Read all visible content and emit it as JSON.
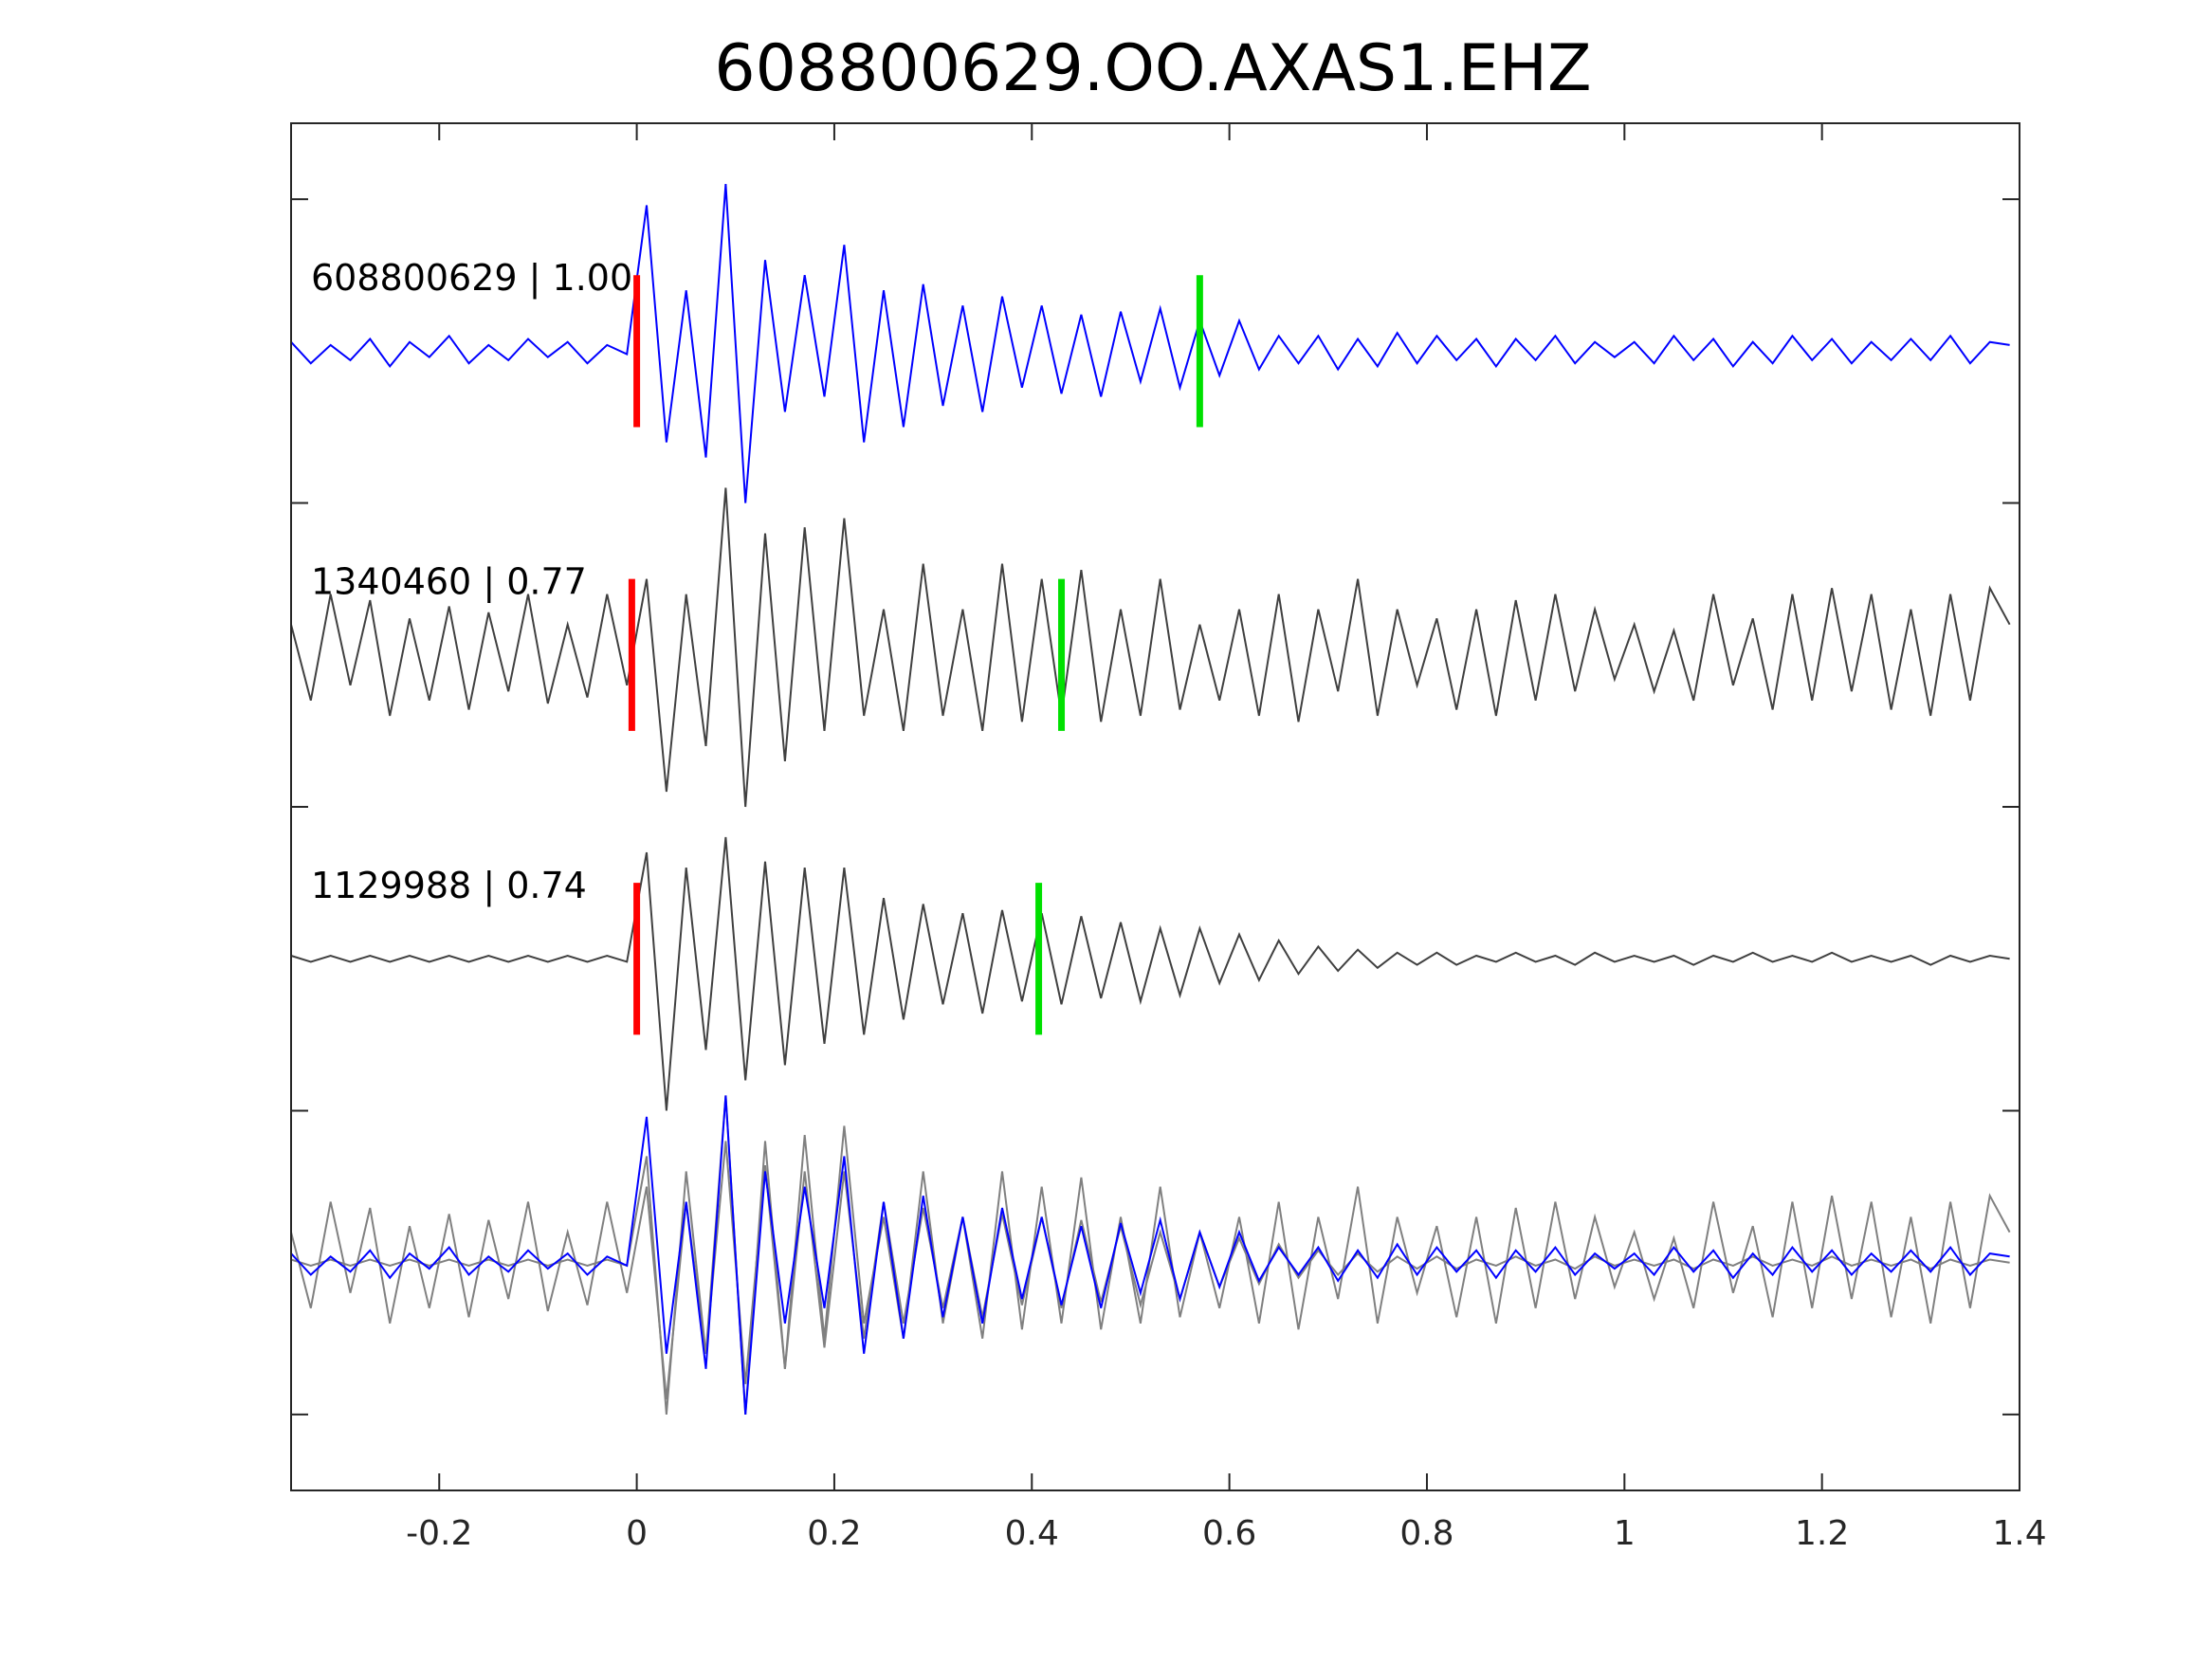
{
  "chart_data": {
    "type": "line",
    "title": "608800629.OO.AXAS1.EHZ",
    "xlabel": "",
    "ylabel": "",
    "xlim": [
      -0.35,
      1.4
    ],
    "ylim": [
      0.25,
      4.75
    ],
    "xticks": [
      -0.2,
      0,
      0.2,
      0.4,
      0.6,
      0.8,
      1,
      1.2,
      1.4
    ],
    "xtick_labels": [
      "-0.2",
      "0",
      "0.2",
      "0.4",
      "0.6",
      "0.8",
      "1",
      "1.2",
      "1.4"
    ],
    "yticks": [
      0.5,
      1.5,
      2.5,
      3.5,
      4.5
    ],
    "grid": false,
    "t_start": -0.35,
    "dt": 0.02,
    "series": [
      {
        "name": "608800629 | 1.00",
        "label": "608800629 | 1.00",
        "offset": 4,
        "color": "#0000ff",
        "pick_p": 0.0,
        "pick_s": 0.57,
        "values": [
          0.03,
          -0.04,
          0.02,
          -0.03,
          0.04,
          -0.05,
          0.03,
          -0.02,
          0.05,
          -0.04,
          0.02,
          -0.03,
          0.04,
          -0.02,
          0.03,
          -0.04,
          0.02,
          -0.01,
          0.48,
          -0.3,
          0.2,
          -0.35,
          0.55,
          -0.5,
          0.3,
          -0.2,
          0.25,
          -0.15,
          0.35,
          -0.3,
          0.2,
          -0.25,
          0.22,
          -0.18,
          0.15,
          -0.2,
          0.18,
          -0.12,
          0.15,
          -0.14,
          0.12,
          -0.15,
          0.13,
          -0.1,
          0.14,
          -0.12,
          0.1,
          -0.08,
          0.1,
          -0.06,
          0.05,
          -0.04,
          0.05,
          -0.06,
          0.04,
          -0.05,
          0.06,
          -0.04,
          0.05,
          -0.03,
          0.04,
          -0.05,
          0.04,
          -0.03,
          0.05,
          -0.04,
          0.03,
          -0.02,
          0.03,
          -0.04,
          0.05,
          -0.03,
          0.04,
          -0.05,
          0.03,
          -0.04,
          0.05,
          -0.03,
          0.04,
          -0.04,
          0.03,
          -0.03,
          0.04,
          -0.03,
          0.05,
          -0.04,
          0.03,
          0.02
        ]
      },
      {
        "name": "1340460 | 0.77",
        "label": "1340460 | 0.77",
        "offset": 3,
        "color": "#404040",
        "pick_p": -0.005,
        "pick_s": 0.43,
        "values": [
          0.1,
          -0.15,
          0.2,
          -0.1,
          0.18,
          -0.2,
          0.12,
          -0.15,
          0.16,
          -0.18,
          0.14,
          -0.12,
          0.2,
          -0.16,
          0.1,
          -0.14,
          0.2,
          -0.1,
          0.25,
          -0.45,
          0.2,
          -0.3,
          0.55,
          -0.5,
          0.4,
          -0.35,
          0.42,
          -0.25,
          0.45,
          -0.2,
          0.15,
          -0.25,
          0.3,
          -0.2,
          0.15,
          -0.25,
          0.3,
          -0.22,
          0.25,
          -0.2,
          0.28,
          -0.22,
          0.15,
          -0.2,
          0.25,
          -0.18,
          0.1,
          -0.15,
          0.15,
          -0.2,
          0.2,
          -0.22,
          0.15,
          -0.12,
          0.25,
          -0.2,
          0.15,
          -0.1,
          0.12,
          -0.18,
          0.15,
          -0.2,
          0.18,
          -0.15,
          0.2,
          -0.12,
          0.15,
          -0.08,
          0.1,
          -0.12,
          0.08,
          -0.15,
          0.2,
          -0.1,
          0.12,
          -0.18,
          0.2,
          -0.15,
          0.22,
          -0.12,
          0.2,
          -0.18,
          0.15,
          -0.2,
          0.2,
          -0.15,
          0.22,
          0.1
        ]
      },
      {
        "name": "1129988 | 0.74",
        "label": "1129988 | 0.74",
        "offset": 2,
        "color": "#404040",
        "pick_p": 0.0,
        "pick_s": 0.407,
        "values": [
          0.01,
          -0.01,
          0.01,
          -0.01,
          0.01,
          -0.01,
          0.01,
          -0.01,
          0.01,
          -0.01,
          0.01,
          -0.01,
          0.01,
          -0.01,
          0.01,
          -0.01,
          0.01,
          -0.01,
          0.35,
          -0.5,
          0.3,
          -0.3,
          0.4,
          -0.4,
          0.32,
          -0.35,
          0.3,
          -0.28,
          0.3,
          -0.25,
          0.2,
          -0.2,
          0.18,
          -0.15,
          0.15,
          -0.18,
          0.16,
          -0.14,
          0.15,
          -0.15,
          0.14,
          -0.13,
          0.12,
          -0.14,
          0.1,
          -0.12,
          0.1,
          -0.08,
          0.08,
          -0.07,
          0.06,
          -0.05,
          0.04,
          -0.04,
          0.03,
          -0.03,
          0.02,
          -0.02,
          0.02,
          -0.02,
          0.01,
          -0.01,
          0.02,
          -0.01,
          0.01,
          -0.02,
          0.02,
          -0.01,
          0.01,
          -0.01,
          0.01,
          -0.02,
          0.01,
          -0.01,
          0.02,
          -0.01,
          0.01,
          -0.01,
          0.02,
          -0.01,
          0.01,
          -0.01,
          0.01,
          -0.02,
          0.01,
          -0.01,
          0.01,
          0.0
        ]
      }
    ],
    "overlay": {
      "offset": 1,
      "reference_color": "#0000ff",
      "others_color": "#808080"
    },
    "pick_colors": {
      "p": "#ff0000",
      "s": "#00e000"
    },
    "pick_half_height": 0.25
  }
}
